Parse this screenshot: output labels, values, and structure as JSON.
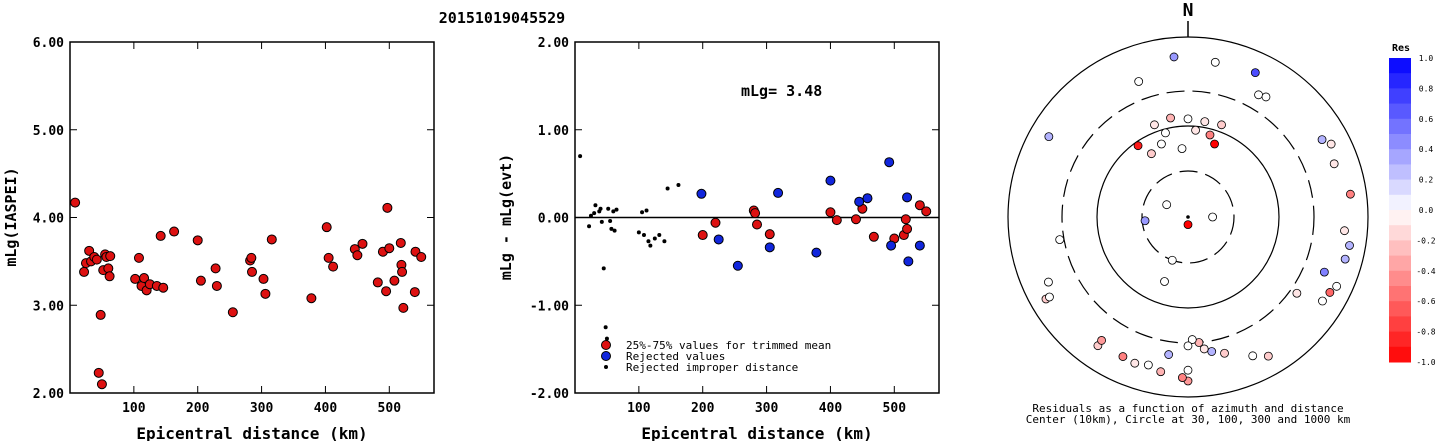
{
  "header": {
    "title": "20151019045529"
  },
  "chart_data": [
    {
      "type": "scatter",
      "xlabel": "Epicentral distance (km)",
      "ylabel": "mLg(IASPEI)",
      "xlim": [
        0,
        570
      ],
      "ylim": [
        2.0,
        6.0
      ],
      "x_ticks": [
        "100",
        "200",
        "300",
        "400",
        "500"
      ],
      "y_ticks": [
        "2.00",
        "3.00",
        "4.00",
        "5.00",
        "6.00"
      ],
      "series": [
        {
          "marker": "red",
          "points": [
            [
              8,
              4.17
            ],
            [
              22,
              3.38
            ],
            [
              25,
              3.48
            ],
            [
              30,
              3.62
            ],
            [
              33,
              3.5
            ],
            [
              38,
              3.55
            ],
            [
              42,
              3.52
            ],
            [
              45,
              2.23
            ],
            [
              48,
              2.89
            ],
            [
              50,
              2.1
            ],
            [
              52,
              3.4
            ],
            [
              55,
              3.58
            ],
            [
              57,
              3.55
            ],
            [
              60,
              3.42
            ],
            [
              62,
              3.33
            ],
            [
              63,
              3.56
            ],
            [
              102,
              3.3
            ],
            [
              108,
              3.54
            ],
            [
              112,
              3.22
            ],
            [
              116,
              3.31
            ],
            [
              120,
              3.17
            ],
            [
              125,
              3.24
            ],
            [
              136,
              3.22
            ],
            [
              142,
              3.79
            ],
            [
              146,
              3.2
            ],
            [
              163,
              3.84
            ],
            [
              200,
              3.74
            ],
            [
              205,
              3.28
            ],
            [
              228,
              3.42
            ],
            [
              230,
              3.22
            ],
            [
              255,
              2.92
            ],
            [
              282,
              3.51
            ],
            [
              284,
              3.54
            ],
            [
              285,
              3.38
            ],
            [
              303,
              3.3
            ],
            [
              306,
              3.13
            ],
            [
              316,
              3.75
            ],
            [
              378,
              3.08
            ],
            [
              402,
              3.89
            ],
            [
              405,
              3.54
            ],
            [
              412,
              3.44
            ],
            [
              446,
              3.64
            ],
            [
              450,
              3.57
            ],
            [
              458,
              3.7
            ],
            [
              482,
              3.26
            ],
            [
              490,
              3.61
            ],
            [
              495,
              3.16
            ],
            [
              497,
              4.11
            ],
            [
              500,
              3.65
            ],
            [
              508,
              3.28
            ],
            [
              518,
              3.71
            ],
            [
              519,
              3.46
            ],
            [
              520,
              3.38
            ],
            [
              522,
              2.97
            ],
            [
              540,
              3.15
            ],
            [
              541,
              3.61
            ],
            [
              550,
              3.55
            ]
          ]
        }
      ]
    },
    {
      "type": "scatter",
      "xlabel": "Epicentral distance (km)",
      "ylabel": "mLg - mLg(evt)",
      "xlim": [
        0,
        570
      ],
      "ylim": [
        -2.0,
        2.0
      ],
      "x_ticks": [
        "100",
        "200",
        "300",
        "400",
        "500"
      ],
      "y_ticks": [
        "-2.00",
        "-1.00",
        "0.00",
        "1.00",
        "2.00"
      ],
      "annotation": "mLg= 3.48",
      "series": [
        {
          "name": "25%-75% values for trimmed mean",
          "marker": "red",
          "points": [
            [
              200,
              -0.2
            ],
            [
              220,
              -0.06
            ],
            [
              280,
              0.08
            ],
            [
              282,
              0.05
            ],
            [
              285,
              -0.08
            ],
            [
              305,
              -0.19
            ],
            [
              400,
              0.06
            ],
            [
              410,
              -0.03
            ],
            [
              440,
              -0.02
            ],
            [
              450,
              0.1
            ],
            [
              468,
              -0.22
            ],
            [
              500,
              -0.24
            ],
            [
              515,
              -0.2
            ],
            [
              518,
              -0.02
            ],
            [
              520,
              -0.13
            ],
            [
              540,
              0.14
            ],
            [
              550,
              0.07
            ]
          ]
        },
        {
          "name": "Rejected values",
          "marker": "blue",
          "points": [
            [
              198,
              0.27
            ],
            [
              225,
              -0.25
            ],
            [
              255,
              -0.55
            ],
            [
              305,
              -0.34
            ],
            [
              318,
              0.28
            ],
            [
              378,
              -0.4
            ],
            [
              400,
              0.42
            ],
            [
              445,
              0.18
            ],
            [
              458,
              0.22
            ],
            [
              492,
              0.63
            ],
            [
              495,
              -0.32
            ],
            [
              520,
              0.23
            ],
            [
              522,
              -0.5
            ],
            [
              540,
              -0.32
            ]
          ]
        },
        {
          "name": "Rejected improper distance",
          "marker": "dot",
          "points": [
            [
              8,
              0.7
            ],
            [
              22,
              -0.1
            ],
            [
              25,
              0.02
            ],
            [
              30,
              0.05
            ],
            [
              32,
              0.14
            ],
            [
              38,
              0.07
            ],
            [
              40,
              0.1
            ],
            [
              42,
              -0.05
            ],
            [
              45,
              -0.58
            ],
            [
              48,
              -1.25
            ],
            [
              50,
              -1.38
            ],
            [
              52,
              0.1
            ],
            [
              55,
              -0.04
            ],
            [
              57,
              -0.13
            ],
            [
              60,
              0.07
            ],
            [
              62,
              -0.15
            ],
            [
              65,
              0.09
            ],
            [
              100,
              -0.17
            ],
            [
              105,
              0.06
            ],
            [
              108,
              -0.2
            ],
            [
              112,
              0.08
            ],
            [
              115,
              -0.27
            ],
            [
              118,
              -0.32
            ],
            [
              125,
              -0.24
            ],
            [
              132,
              -0.2
            ],
            [
              140,
              -0.27
            ],
            [
              145,
              0.33
            ],
            [
              162,
              0.37
            ]
          ]
        }
      ]
    },
    {
      "type": "scatter",
      "subtype": "polar",
      "north_label": "N",
      "caption_line1": "Residuals as a function of azimuth and distance",
      "caption_line2": "Center (10km), Circle at 30, 100, 300 and 1000 km",
      "rings_km": [
        30,
        100,
        300,
        1000
      ],
      "points_azimuth_deg_distance_km_residual": [
        [
          350,
          135,
          -0.3
        ],
        [
          0,
          125,
          0.0
        ],
        [
          10,
          120,
          -0.1
        ],
        [
          20,
          125,
          -0.2
        ],
        [
          340,
          125,
          -0.1
        ],
        [
          345,
          90,
          0.0
        ],
        [
          5,
          90,
          -0.1
        ],
        [
          15,
          85,
          -0.5
        ],
        [
          325,
          90,
          -0.9
        ],
        [
          330,
          62,
          -0.2
        ],
        [
          20,
          70,
          -1.0
        ],
        [
          340,
          70,
          0.0
        ],
        [
          355,
          55,
          0.0
        ],
        [
          90,
          18,
          0.0
        ],
        [
          300,
          18,
          0.0
        ],
        [
          200,
          55,
          0.0
        ],
        [
          265,
          28,
          0.4
        ],
        [
          200,
          30,
          0.0
        ],
        [
          180,
          12,
          -1.0
        ],
        [
          355,
          650,
          0.4
        ],
        [
          10,
          600,
          0.0
        ],
        [
          25,
          630,
          0.7
        ],
        [
          30,
          420,
          0.0
        ],
        [
          33,
          440,
          0.0
        ],
        [
          340,
          450,
          0.0
        ],
        [
          300,
          650,
          0.3
        ],
        [
          60,
          570,
          0.3
        ],
        [
          63,
          650,
          -0.1
        ],
        [
          70,
          580,
          -0.1
        ],
        [
          82,
          700,
          -0.5
        ],
        [
          95,
          600,
          -0.1
        ],
        [
          100,
          700,
          0.3
        ],
        [
          118,
          650,
          -0.6
        ],
        [
          122,
          620,
          0.0
        ],
        [
          105,
          680,
          0.3
        ],
        [
          112,
          480,
          0.5
        ],
        [
          125,
          350,
          -0.1
        ],
        [
          150,
          650,
          -0.2
        ],
        [
          155,
          550,
          0.0
        ],
        [
          165,
          420,
          -0.2
        ],
        [
          170,
          380,
          0.3
        ],
        [
          173,
          350,
          -0.1
        ],
        [
          175,
          300,
          -0.3
        ],
        [
          178,
          270,
          0.0
        ],
        [
          180,
          320,
          0.0
        ],
        [
          180,
          550,
          0.0
        ],
        [
          180,
          700,
          -0.4
        ],
        [
          182,
          650,
          -0.5
        ],
        [
          188,
          400,
          0.3
        ],
        [
          190,
          600,
          -0.3
        ],
        [
          195,
          550,
          0.0
        ],
        [
          200,
          580,
          -0.1
        ],
        [
          215,
          600,
          -0.2
        ],
        [
          205,
          560,
          -0.5
        ],
        [
          240,
          700,
          -0.2
        ],
        [
          240,
          640,
          0.0
        ],
        [
          260,
          330,
          0.0
        ],
        [
          245,
          560,
          0.0
        ],
        [
          115,
          700,
          0.0
        ],
        [
          215,
          520,
          -0.4
        ]
      ]
    }
  ],
  "colorbar": {
    "title": "Res",
    "tick_labels": [
      "1.0",
      "0.8",
      "0.6",
      "0.4",
      "0.2",
      "0.0",
      "-0.2",
      "-0.4",
      "-0.6",
      "-0.8",
      "-1.0"
    ]
  },
  "legend": {
    "items": [
      {
        "label": "25%-75% values for trimmed mean",
        "marker": "red"
      },
      {
        "label": "Rejected values",
        "marker": "blue"
      },
      {
        "label": "Rejected improper distance",
        "marker": "dot"
      }
    ]
  },
  "colors": {
    "red": "#dd1111",
    "blue": "#1126dd",
    "black": "#000000"
  }
}
